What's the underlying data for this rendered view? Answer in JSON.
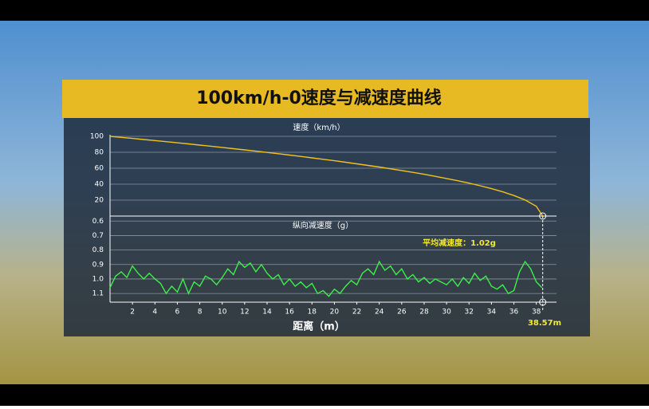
{
  "title": "100km/h-0速度与减速度曲线",
  "chart_data": [
    {
      "type": "line",
      "ylabel": "速度（km/h）",
      "x": [
        0,
        1,
        2,
        3,
        4,
        5,
        6,
        7,
        8,
        9,
        10,
        11,
        12,
        13,
        14,
        15,
        16,
        17,
        18,
        19,
        20,
        21,
        22,
        23,
        24,
        25,
        26,
        27,
        28,
        29,
        30,
        31,
        32,
        33,
        34,
        35,
        36,
        37,
        38,
        38.57
      ],
      "values": [
        100,
        98.7,
        97.4,
        96.0,
        94.7,
        93.3,
        91.9,
        90.5,
        89.0,
        87.6,
        86.1,
        84.5,
        83.0,
        81.4,
        79.8,
        78.2,
        76.5,
        74.8,
        73.0,
        71.2,
        69.4,
        67.5,
        65.5,
        63.5,
        61.5,
        59.3,
        57.1,
        54.8,
        52.4,
        49.8,
        47.1,
        44.3,
        41.3,
        38.0,
        34.4,
        30.4,
        25.8,
        20.2,
        12.2,
        0
      ],
      "color": "#f2c21c",
      "xlim": [
        0,
        39.8
      ],
      "ylim": [
        0,
        100
      ],
      "yticks": [
        20,
        40,
        60,
        80,
        100
      ],
      "grid": true
    },
    {
      "type": "line",
      "ylabel": "纵向减速度（g）",
      "xlabel": "距离（m）",
      "x": [
        0,
        0.5,
        1,
        1.5,
        2,
        2.5,
        3,
        3.5,
        4,
        4.5,
        5,
        5.5,
        6,
        6.5,
        7,
        7.5,
        8,
        8.5,
        9,
        9.5,
        10,
        10.5,
        11,
        11.5,
        12,
        12.5,
        13,
        13.5,
        14,
        14.5,
        15,
        15.5,
        16,
        16.5,
        17,
        17.5,
        18,
        18.5,
        19,
        19.5,
        20,
        20.5,
        21,
        21.5,
        22,
        22.5,
        23,
        23.5,
        24,
        24.5,
        25,
        25.5,
        26,
        26.5,
        27,
        27.5,
        28,
        28.5,
        29,
        29.5,
        30,
        30.5,
        31,
        31.5,
        32,
        32.5,
        33,
        33.5,
        34,
        34.5,
        35,
        35.5,
        36,
        36.5,
        37,
        37.5,
        38,
        38.5
      ],
      "values": [
        1.06,
        0.98,
        0.95,
        0.99,
        0.91,
        0.96,
        1.0,
        0.96,
        1.0,
        1.03,
        1.1,
        1.05,
        1.09,
        1.0,
        1.1,
        1.02,
        1.05,
        0.98,
        1.0,
        1.04,
        0.99,
        0.93,
        0.97,
        0.88,
        0.92,
        0.89,
        0.95,
        0.9,
        0.96,
        1.0,
        0.97,
        1.04,
        1.0,
        1.05,
        1.02,
        1.06,
        1.03,
        1.1,
        1.08,
        1.12,
        1.07,
        1.1,
        1.05,
        1.01,
        1.04,
        0.96,
        0.93,
        0.97,
        0.88,
        0.94,
        0.91,
        0.97,
        0.93,
        1.0,
        0.97,
        1.02,
        0.99,
        1.03,
        1.0,
        1.02,
        1.04,
        1.0,
        1.05,
        0.99,
        1.03,
        0.96,
        1.01,
        0.98,
        1.05,
        1.07,
        1.04,
        1.1,
        1.08,
        0.95,
        0.88,
        0.93,
        1.02,
        1.06
      ],
      "color": "#3cf04a",
      "xlim": [
        0,
        39.8
      ],
      "ylim": [
        0.56,
        1.16
      ],
      "inverted": true,
      "yticks": [
        0.6,
        0.7,
        0.8,
        0.9,
        {
          "value": 1,
          "label": "1.0"
        },
        1.1
      ],
      "xticks": [
        2,
        4,
        6,
        8,
        10,
        12,
        14,
        16,
        18,
        20,
        22,
        24,
        26,
        28,
        30,
        32,
        34,
        36,
        38
      ],
      "grid": true,
      "annotations": [
        "平均减速度：1.02g",
        "38.57m"
      ]
    }
  ]
}
